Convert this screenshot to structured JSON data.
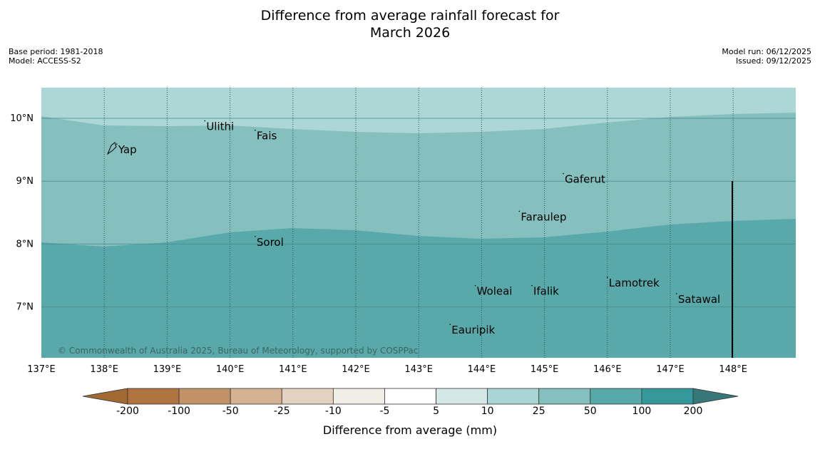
{
  "title": {
    "line1": "Difference from average rainfall forecast for",
    "line2": "March 2026"
  },
  "meta": {
    "base_period": "Base period: 1981-2018",
    "model": "Model: ACCESS-S2",
    "model_run": "Model run: 06/12/2025",
    "issued": "Issued: 09/12/2025"
  },
  "map": {
    "lon_range": [
      137,
      149
    ],
    "lat_range": [
      6.2,
      10.5
    ],
    "lon_ticks": [
      137,
      138,
      139,
      140,
      141,
      142,
      143,
      144,
      145,
      146,
      147,
      148
    ],
    "lon_tick_labels": [
      "137°E",
      "138°E",
      "139°E",
      "140°E",
      "141°E",
      "142°E",
      "143°E",
      "144°E",
      "145°E",
      "146°E",
      "147°E",
      "148°E"
    ],
    "lat_ticks": [
      7,
      8,
      9,
      10
    ],
    "lat_tick_labels": [
      "7°N",
      "8°N",
      "9°N",
      "10°N"
    ],
    "bands": [
      {
        "category": "10 to 25",
        "color": "#add6d6"
      },
      {
        "category": "25 to 50",
        "color": "#85c0bf"
      },
      {
        "category": "50 to 100",
        "color": "#5aa9aa"
      }
    ],
    "islands": [
      {
        "name": "Yap",
        "lon": 138.2,
        "lat": 9.5
      },
      {
        "name": "Ulithi",
        "lon": 139.6,
        "lat": 9.87
      },
      {
        "name": "Fais",
        "lon": 140.4,
        "lat": 9.72
      },
      {
        "name": "Gaferut",
        "lon": 145.3,
        "lat": 9.03
      },
      {
        "name": "Faraulep",
        "lon": 144.6,
        "lat": 8.43
      },
      {
        "name": "Sorol",
        "lon": 140.4,
        "lat": 8.03
      },
      {
        "name": "Woleai",
        "lon": 143.9,
        "lat": 7.25
      },
      {
        "name": "Ifalik",
        "lon": 144.8,
        "lat": 7.25
      },
      {
        "name": "Lamotrek",
        "lon": 146.0,
        "lat": 7.38
      },
      {
        "name": "Satawal",
        "lon": 147.1,
        "lat": 7.12
      },
      {
        "name": "Eauripik",
        "lon": 143.5,
        "lat": 6.63
      }
    ],
    "copyright": "© Commonwealth of Australia 2025, Bureau of Meteorology, supported by COSPPac"
  },
  "colorbar": {
    "title": "Difference from average (mm)",
    "labels": [
      "-200",
      "-100",
      "-50",
      "-25",
      "-10",
      "-5",
      "5",
      "10",
      "25",
      "50",
      "100",
      "200"
    ],
    "colors": [
      "#a26a33",
      "#b07440",
      "#c19266",
      "#d5b291",
      "#e4d2c1",
      "#f1ede7",
      "#ffffff",
      "#d3e8e7",
      "#a9d5d4",
      "#83c0bf",
      "#58a9aa",
      "#35999b",
      "#367777"
    ]
  }
}
